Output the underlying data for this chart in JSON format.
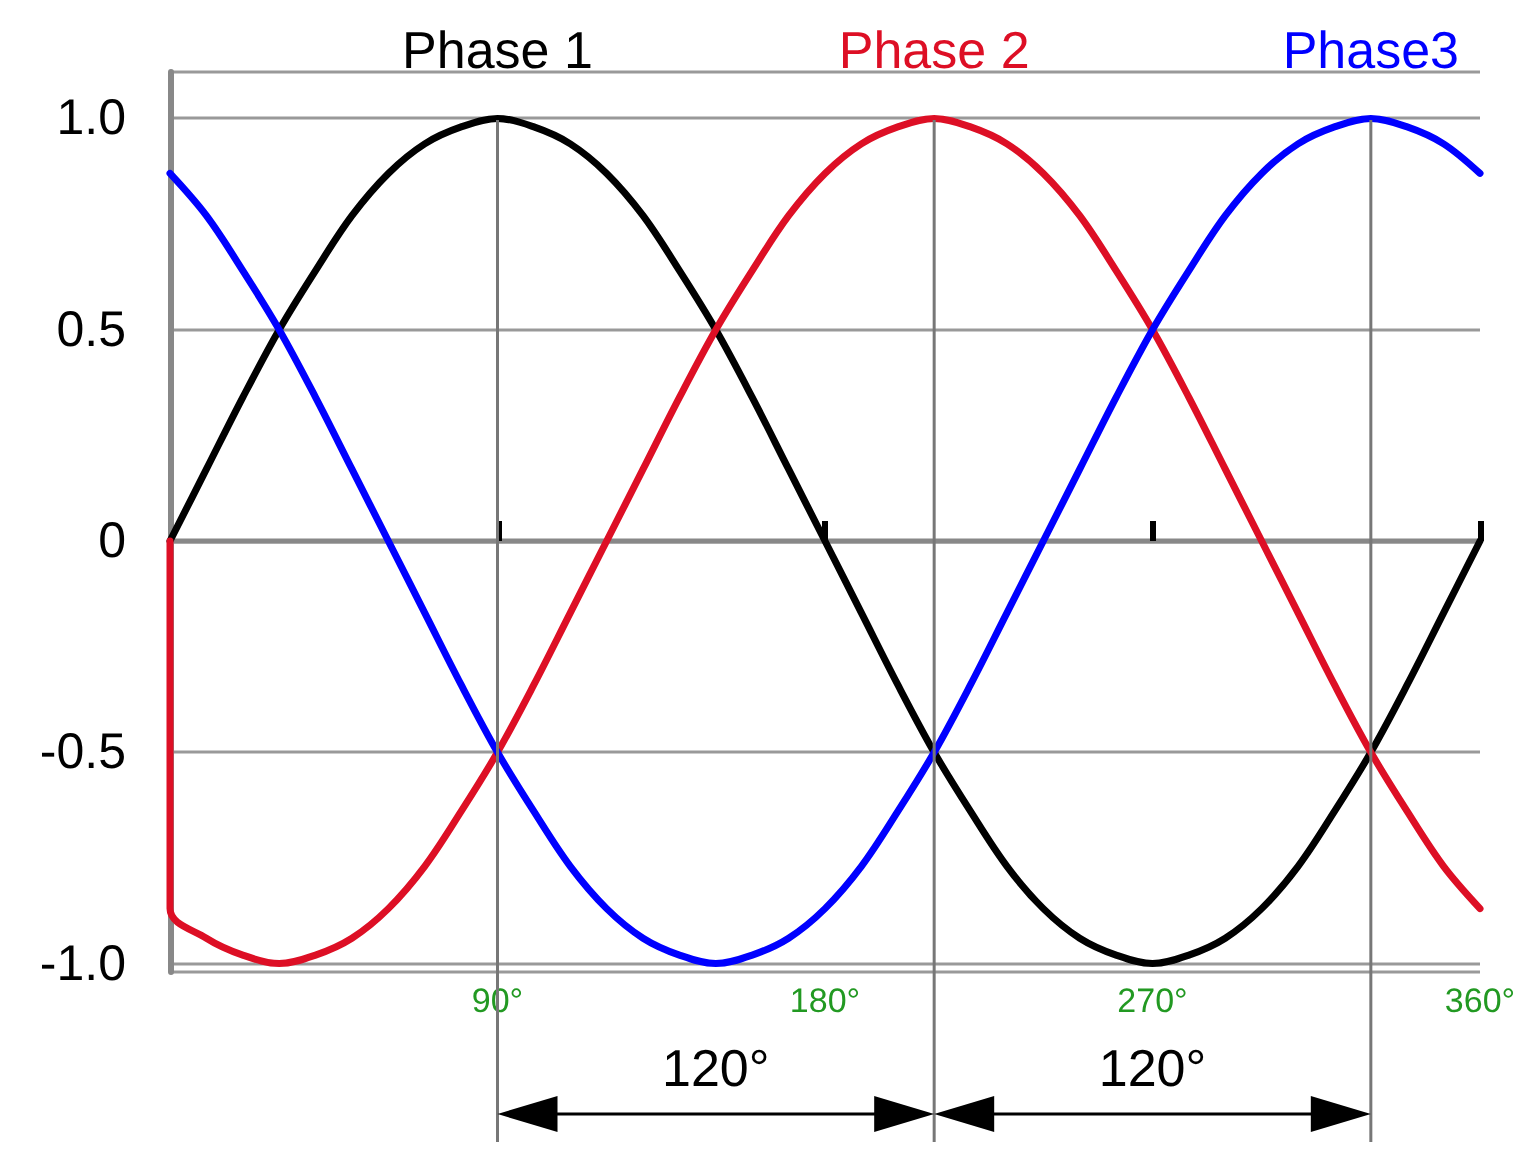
{
  "chart_data": {
    "type": "line",
    "x": [
      0,
      10,
      20,
      30,
      40,
      50,
      60,
      70,
      80,
      90,
      100,
      110,
      120,
      130,
      140,
      150,
      160,
      170,
      180,
      190,
      200,
      210,
      220,
      230,
      240,
      250,
      260,
      270,
      280,
      290,
      300,
      310,
      320,
      330,
      340,
      350,
      360
    ],
    "series": [
      {
        "name": "Phase 1",
        "color": "#000000",
        "values": [
          0,
          0.17,
          0.34,
          0.5,
          0.64,
          0.77,
          0.87,
          0.94,
          0.98,
          1,
          0.98,
          0.94,
          0.87,
          0.77,
          0.64,
          0.5,
          0.34,
          0.17,
          0,
          -0.17,
          -0.34,
          -0.5,
          -0.64,
          -0.77,
          -0.87,
          -0.94,
          -0.98,
          -1,
          -0.98,
          -0.94,
          -0.87,
          -0.77,
          -0.64,
          -0.5,
          -0.34,
          -0.17,
          0
        ]
      },
      {
        "name": "Phase 2",
        "color": "#dd0f25",
        "x": [
          0,
          0,
          10,
          20,
          30,
          40,
          50,
          60,
          70,
          80,
          90,
          100,
          110,
          120,
          130,
          140,
          150,
          160,
          170,
          180,
          190,
          200,
          210,
          220,
          230,
          240,
          250,
          260,
          270,
          280,
          290,
          300,
          310,
          320,
          330,
          340,
          350,
          360
        ],
        "values": [
          0,
          -0.87,
          -0.94,
          -0.98,
          -1,
          -0.98,
          -0.94,
          -0.87,
          -0.77,
          -0.64,
          -0.5,
          -0.34,
          -0.17,
          0,
          0.17,
          0.34,
          0.5,
          0.64,
          0.77,
          0.87,
          0.94,
          0.98,
          1,
          0.98,
          0.94,
          0.87,
          0.77,
          0.64,
          0.5,
          0.34,
          0.17,
          0,
          -0.17,
          -0.34,
          -0.5,
          -0.64,
          -0.77,
          -0.87
        ]
      },
      {
        "name": "Phase3",
        "color": "#0000ff",
        "values": [
          0.87,
          0.77,
          0.64,
          0.5,
          0.34,
          0.17,
          0,
          -0.17,
          -0.34,
          -0.5,
          -0.64,
          -0.77,
          -0.87,
          -0.94,
          -0.98,
          -1,
          -0.98,
          -0.94,
          -0.87,
          -0.77,
          -0.64,
          -0.5,
          -0.34,
          -0.17,
          0,
          0.17,
          0.34,
          0.5,
          0.64,
          0.77,
          0.87,
          0.94,
          0.98,
          1,
          0.98,
          0.94,
          0.87
        ]
      }
    ],
    "xlim": [
      0,
      360
    ],
    "xticks": [
      {
        "value": 90,
        "label": "90°"
      },
      {
        "value": 180,
        "label": "180°"
      },
      {
        "value": 270,
        "label": "270°"
      },
      {
        "value": 360,
        "label": "360°"
      }
    ],
    "ylim": [
      -1.02,
      1.11
    ],
    "yticks": [
      {
        "value": 1,
        "label": "1.0"
      },
      0.5,
      0,
      -0.5,
      {
        "value": -1,
        "label": "-1.0"
      }
    ],
    "ref_lines": [
      {
        "axis": "x",
        "value": 90,
        "label": null,
        "color": "#777777"
      },
      {
        "axis": "x",
        "value": 210,
        "label": null,
        "color": "#777777"
      },
      {
        "axis": "x",
        "value": 330,
        "label": null,
        "color": "#777777"
      }
    ],
    "annotations": [
      "120°",
      "120°"
    ],
    "grid": "y",
    "marker": "none",
    "line_style": "solid"
  }
}
